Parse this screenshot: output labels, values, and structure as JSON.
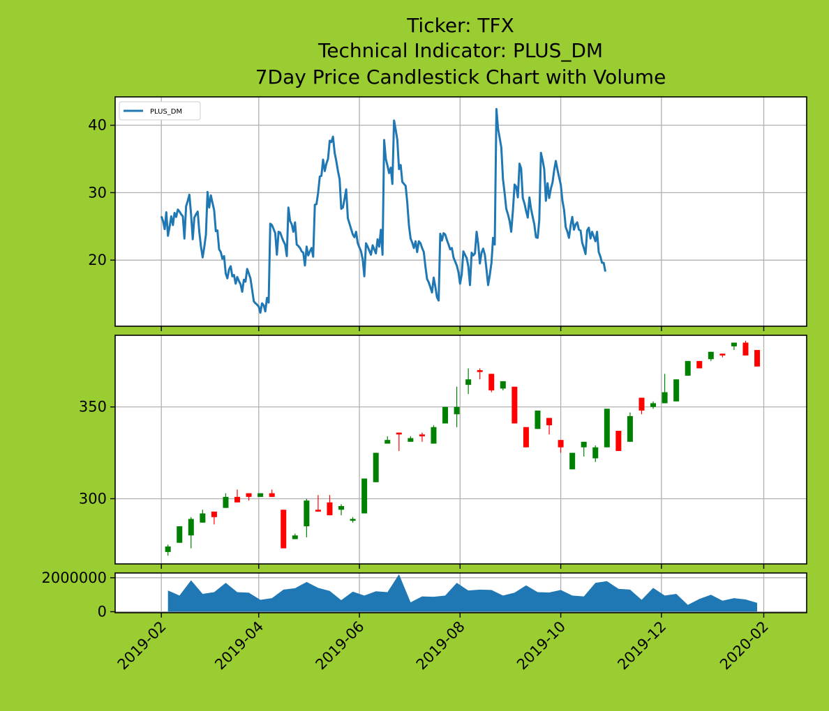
{
  "title_lines": [
    "Ticker: TFX",
    "Technical Indicator: PLUS_DM",
    "7Day Price Candlestick Chart with Volume"
  ],
  "colors": {
    "background": "#9acd32",
    "line": "#1f77b4",
    "up": "#008000",
    "down": "#ff0000",
    "volume": "#1f77b4",
    "grid": "#b0b0b0"
  },
  "chart_data": [
    {
      "type": "line",
      "panel": "indicator",
      "legend": {
        "label": "PLUS_DM",
        "placement": "upper-left"
      },
      "grid": true,
      "ylim": [
        10.2,
        44.2
      ],
      "yticks": [
        20,
        30,
        40
      ],
      "x_start": "2019-02-01",
      "x_step_days": 1,
      "series": [
        {
          "name": "PLUS_DM",
          "values": [
            26.5,
            25.8,
            24.6,
            27.1,
            23.6,
            25.0,
            26.5,
            25.2,
            27.0,
            26.4,
            27.5,
            27.2,
            26.8,
            26.5,
            23.2,
            28.0,
            28.8,
            29.7,
            26.8,
            23.1,
            26.3,
            26.8,
            27.2,
            24.2,
            22.0,
            20.4,
            21.9,
            23.8,
            30.1,
            27.8,
            29.6,
            28.5,
            27.4,
            24.3,
            24.4,
            21.6,
            21.2,
            20.2,
            20.6,
            18.0,
            17.3,
            18.6,
            19.1,
            17.6,
            17.8,
            16.5,
            17.5,
            16.9,
            16.4,
            15.3,
            17.1,
            16.8,
            18.7,
            18.0,
            17.3,
            15.6,
            13.9,
            13.6,
            13.4,
            13.1,
            12.2,
            13.6,
            13.3,
            12.4,
            14.4,
            13.7,
            25.4,
            25.2,
            24.6,
            24.0,
            20.8,
            24.2,
            24.1,
            23.4,
            22.8,
            22.3,
            20.6,
            27.8,
            25.8,
            25.3,
            24.2,
            25.6,
            22.3,
            22.1,
            21.8,
            21.3,
            21.1,
            19.2,
            22.0,
            20.7,
            21.3,
            21.8,
            20.5,
            28.2,
            28.3,
            30.0,
            32.4,
            32.5,
            34.9,
            33.2,
            34.3,
            35.0,
            37.7,
            37.5,
            38.3,
            35.9,
            34.7,
            33.2,
            32.0,
            27.6,
            27.8,
            29.1,
            30.5,
            26.2,
            25.4,
            24.6,
            23.8,
            23.4,
            24.2,
            22.5,
            21.9,
            21.3,
            20.1,
            17.6,
            22.5,
            22.0,
            21.4,
            20.8,
            22.2,
            21.6,
            21.0,
            23.1,
            22.0,
            24.5,
            20.8,
            37.8,
            35.0,
            34.0,
            32.9,
            33.7,
            31.3,
            40.7,
            39.3,
            37.8,
            33.5,
            34.1,
            31.6,
            31.3,
            31.0,
            28.6,
            25.2,
            23.2,
            22.6,
            21.8,
            22.8,
            21.2,
            22.8,
            22.5,
            21.8,
            21.2,
            19.1,
            17.2,
            16.7,
            16.0,
            15.2,
            17.4,
            16.1,
            14.5,
            14.0,
            23.9,
            22.9,
            24.0,
            23.8,
            23.0,
            22.3,
            21.6,
            21.8,
            20.4,
            19.8,
            19.2,
            18.2,
            16.5,
            17.9,
            21.3,
            20.8,
            20.3,
            19.1,
            16.3,
            21.1,
            20.7,
            21.0,
            24.2,
            22.4,
            19.5,
            21.1,
            21.7,
            20.8,
            18.6,
            16.3,
            17.8,
            19.6,
            23.3,
            22.3,
            42.4,
            39.5,
            38.1,
            36.7,
            32.0,
            29.9,
            27.6,
            26.8,
            25.8,
            24.2,
            27.3,
            31.2,
            30.9,
            29.3,
            34.3,
            33.6,
            29.2,
            28.4,
            27.3,
            26.3,
            29.3,
            27.6,
            26.4,
            25.3,
            23.4,
            23.3,
            25.9,
            35.9,
            34.8,
            33.5,
            28.8,
            31.4,
            29.2,
            30.6,
            31.5,
            33.3,
            34.7,
            33.4,
            32.3,
            31.2,
            28.8,
            27.5,
            24.9,
            24.2,
            23.3,
            25.2,
            26.4,
            24.5,
            25.3,
            25.6,
            24.5,
            24.4,
            22.6,
            21.8,
            20.9,
            24.4,
            24.8,
            23.2,
            24.2,
            23.5,
            22.8,
            24.2,
            21.2,
            20.5,
            19.6,
            19.6,
            18.3
          ]
        }
      ]
    },
    {
      "type": "candlestick",
      "panel": "price",
      "grid": true,
      "ylim": [
        264.5,
        389
      ],
      "yticks": [
        300,
        350
      ],
      "candles": [
        {
          "date": "2019-02-05",
          "open": 271,
          "close": 274,
          "high": 275,
          "low": 269,
          "dir": "up"
        },
        {
          "date": "2019-02-12",
          "open": 276,
          "close": 285,
          "high": 285,
          "low": 276,
          "dir": "up"
        },
        {
          "date": "2019-02-19",
          "open": 280,
          "close": 289,
          "high": 290,
          "low": 273,
          "dir": "up"
        },
        {
          "date": "2019-02-26",
          "open": 287,
          "close": 292,
          "high": 294,
          "low": 287,
          "dir": "up"
        },
        {
          "date": "2019-03-05",
          "open": 293,
          "close": 290,
          "high": 293,
          "low": 286,
          "dir": "down"
        },
        {
          "date": "2019-03-12",
          "open": 295,
          "close": 301,
          "high": 303,
          "low": 295,
          "dir": "up"
        },
        {
          "date": "2019-03-19",
          "open": 301,
          "close": 298,
          "high": 305,
          "low": 298,
          "dir": "down"
        },
        {
          "date": "2019-03-26",
          "open": 303,
          "close": 301,
          "high": 303,
          "low": 299,
          "dir": "down"
        },
        {
          "date": "2019-04-02",
          "open": 301,
          "close": 303,
          "high": 303,
          "low": 301,
          "dir": "up"
        },
        {
          "date": "2019-04-09",
          "open": 303,
          "close": 301,
          "high": 305,
          "low": 301,
          "dir": "down"
        },
        {
          "date": "2019-04-16",
          "open": 294,
          "close": 273,
          "high": 294,
          "low": 273,
          "dir": "down"
        },
        {
          "date": "2019-04-23",
          "open": 278,
          "close": 280,
          "high": 281,
          "low": 278,
          "dir": "up"
        },
        {
          "date": "2019-04-30",
          "open": 285,
          "close": 299,
          "high": 300,
          "low": 279,
          "dir": "up"
        },
        {
          "date": "2019-05-07",
          "open": 294,
          "close": 293,
          "high": 302,
          "low": 293,
          "dir": "down"
        },
        {
          "date": "2019-05-14",
          "open": 298,
          "close": 291,
          "high": 302,
          "low": 291,
          "dir": "down"
        },
        {
          "date": "2019-05-21",
          "open": 294,
          "close": 296,
          "high": 297,
          "low": 291,
          "dir": "up"
        },
        {
          "date": "2019-05-28",
          "open": 288,
          "close": 289,
          "high": 290,
          "low": 287,
          "dir": "up"
        },
        {
          "date": "2019-06-04",
          "open": 292,
          "close": 311,
          "high": 311,
          "low": 292,
          "dir": "up"
        },
        {
          "date": "2019-06-11",
          "open": 309,
          "close": 325,
          "high": 325,
          "low": 309,
          "dir": "up"
        },
        {
          "date": "2019-06-18",
          "open": 330,
          "close": 332,
          "high": 334,
          "low": 330,
          "dir": "up"
        },
        {
          "date": "2019-06-25",
          "open": 336,
          "close": 335,
          "high": 336,
          "low": 326,
          "dir": "down"
        },
        {
          "date": "2019-07-02",
          "open": 331,
          "close": 333,
          "high": 334,
          "low": 331,
          "dir": "up"
        },
        {
          "date": "2019-07-09",
          "open": 335,
          "close": 334,
          "high": 336,
          "low": 331,
          "dir": "down"
        },
        {
          "date": "2019-07-16",
          "open": 330,
          "close": 339,
          "high": 340,
          "low": 330,
          "dir": "up"
        },
        {
          "date": "2019-07-23",
          "open": 341,
          "close": 350,
          "high": 350,
          "low": 341,
          "dir": "up"
        },
        {
          "date": "2019-07-30",
          "open": 346,
          "close": 350,
          "high": 361,
          "low": 339,
          "dir": "up"
        },
        {
          "date": "2019-08-06",
          "open": 362,
          "close": 365,
          "high": 371,
          "low": 357,
          "dir": "up"
        },
        {
          "date": "2019-08-13",
          "open": 370,
          "close": 369,
          "high": 371,
          "low": 365,
          "dir": "down"
        },
        {
          "date": "2019-08-20",
          "open": 368,
          "close": 359,
          "high": 368,
          "low": 358,
          "dir": "down"
        },
        {
          "date": "2019-08-27",
          "open": 360,
          "close": 364,
          "high": 364,
          "low": 359,
          "dir": "up"
        },
        {
          "date": "2019-09-03",
          "open": 361,
          "close": 341,
          "high": 361,
          "low": 341,
          "dir": "down"
        },
        {
          "date": "2019-09-10",
          "open": 339,
          "close": 328,
          "high": 339,
          "low": 328,
          "dir": "down"
        },
        {
          "date": "2019-09-17",
          "open": 338,
          "close": 348,
          "high": 348,
          "low": 338,
          "dir": "up"
        },
        {
          "date": "2019-09-24",
          "open": 344,
          "close": 340,
          "high": 344,
          "low": 335,
          "dir": "down"
        },
        {
          "date": "2019-10-01",
          "open": 332,
          "close": 328,
          "high": 332,
          "low": 325,
          "dir": "down"
        },
        {
          "date": "2019-10-08",
          "open": 316,
          "close": 325,
          "high": 325,
          "low": 316,
          "dir": "up"
        },
        {
          "date": "2019-10-15",
          "open": 328,
          "close": 331,
          "high": 331,
          "low": 323,
          "dir": "up"
        },
        {
          "date": "2019-10-22",
          "open": 322,
          "close": 328,
          "high": 329,
          "low": 320,
          "dir": "up"
        },
        {
          "date": "2019-10-29",
          "open": 328,
          "close": 349,
          "high": 349,
          "low": 328,
          "dir": "up"
        },
        {
          "date": "2019-11-05",
          "open": 337,
          "close": 326,
          "high": 337,
          "low": 326,
          "dir": "down"
        },
        {
          "date": "2019-11-12",
          "open": 331,
          "close": 345,
          "high": 347,
          "low": 331,
          "dir": "up"
        },
        {
          "date": "2019-11-19",
          "open": 355,
          "close": 348,
          "high": 355,
          "low": 346,
          "dir": "down"
        },
        {
          "date": "2019-11-26",
          "open": 350,
          "close": 352,
          "high": 353,
          "low": 349,
          "dir": "up"
        },
        {
          "date": "2019-12-03",
          "open": 352,
          "close": 358,
          "high": 368,
          "low": 352,
          "dir": "up"
        },
        {
          "date": "2019-12-10",
          "open": 353,
          "close": 365,
          "high": 365,
          "low": 353,
          "dir": "up"
        },
        {
          "date": "2019-12-17",
          "open": 367,
          "close": 375,
          "high": 375,
          "low": 367,
          "dir": "up"
        },
        {
          "date": "2019-12-24",
          "open": 375,
          "close": 371,
          "high": 375,
          "low": 371,
          "dir": "down"
        },
        {
          "date": "2019-12-31",
          "open": 376,
          "close": 380,
          "high": 380,
          "low": 375,
          "dir": "up"
        },
        {
          "date": "2020-01-07",
          "open": 379,
          "close": 378,
          "high": 379,
          "low": 377,
          "dir": "down"
        },
        {
          "date": "2020-01-14",
          "open": 383,
          "close": 385,
          "high": 385,
          "low": 381,
          "dir": "up"
        },
        {
          "date": "2020-01-21",
          "open": 385,
          "close": 378,
          "high": 386,
          "low": 378,
          "dir": "down"
        },
        {
          "date": "2020-01-28",
          "open": 381,
          "close": 372,
          "high": 381,
          "low": 372,
          "dir": "down"
        }
      ]
    },
    {
      "type": "area",
      "panel": "volume",
      "grid": true,
      "ylim": [
        -60000,
        2280000
      ],
      "yticks": [
        0,
        2000000
      ],
      "ytick_labels": [
        "0",
        "2000000"
      ],
      "x": [
        "2019-02-05",
        "2019-02-12",
        "2019-02-19",
        "2019-02-26",
        "2019-03-05",
        "2019-03-12",
        "2019-03-19",
        "2019-03-26",
        "2019-04-02",
        "2019-04-09",
        "2019-04-16",
        "2019-04-23",
        "2019-04-30",
        "2019-05-07",
        "2019-05-14",
        "2019-05-21",
        "2019-05-28",
        "2019-06-04",
        "2019-06-11",
        "2019-06-18",
        "2019-06-25",
        "2019-07-02",
        "2019-07-09",
        "2019-07-16",
        "2019-07-23",
        "2019-07-30",
        "2019-08-06",
        "2019-08-13",
        "2019-08-20",
        "2019-08-27",
        "2019-09-03",
        "2019-09-10",
        "2019-09-17",
        "2019-09-24",
        "2019-10-01",
        "2019-10-08",
        "2019-10-15",
        "2019-10-22",
        "2019-10-29",
        "2019-11-05",
        "2019-11-12",
        "2019-11-19",
        "2019-11-26",
        "2019-12-03",
        "2019-12-10",
        "2019-12-17",
        "2019-12-24",
        "2019-12-31",
        "2020-01-07",
        "2020-01-14",
        "2020-01-21",
        "2020-01-28"
      ],
      "values": [
        1250000,
        950000,
        1850000,
        1050000,
        1150000,
        1700000,
        1150000,
        1120000,
        700000,
        800000,
        1300000,
        1380000,
        1750000,
        1400000,
        1220000,
        680000,
        1180000,
        950000,
        1200000,
        1150000,
        2200000,
        550000,
        900000,
        880000,
        950000,
        1700000,
        1250000,
        1300000,
        1280000,
        950000,
        1120000,
        1550000,
        1150000,
        1130000,
        1280000,
        950000,
        900000,
        1700000,
        1800000,
        1350000,
        1300000,
        700000,
        1400000,
        950000,
        1050000,
        400000,
        750000,
        1000000,
        650000,
        800000,
        720000,
        520000
      ]
    }
  ],
  "x_axis": {
    "ticks": [
      "2019-02-01",
      "2019-04-01",
      "2019-06-01",
      "2019-08-01",
      "2019-10-01",
      "2019-12-01",
      "2020-02-01"
    ],
    "tick_labels": [
      "2019-02",
      "2019-04",
      "2019-06",
      "2019-08",
      "2019-10",
      "2019-12",
      "2020-02"
    ],
    "range": [
      "2019-01-04",
      "2020-02-27"
    ]
  }
}
